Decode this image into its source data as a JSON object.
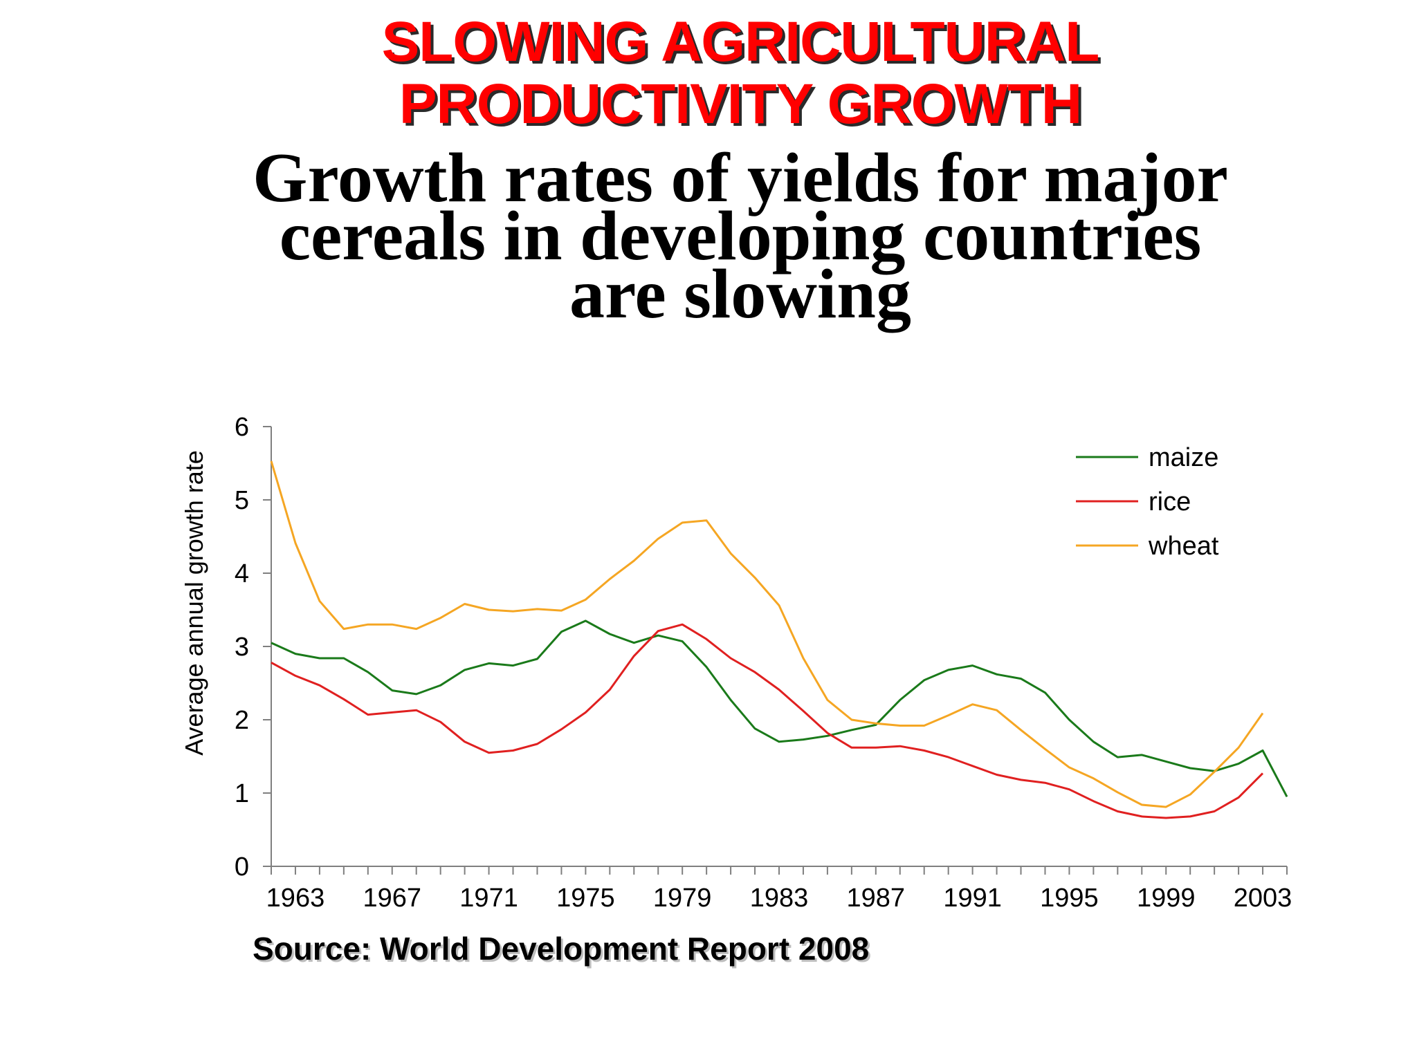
{
  "slide": {
    "title_lines": [
      "SLOWING AGRICULTURAL",
      "PRODUCTIVITY GROWTH"
    ],
    "headline_lines": [
      "Growth rates of yields for major",
      "cereals in developing countries",
      "are slowing"
    ],
    "source": "Source: World Development Report 2008"
  },
  "colors": {
    "title": "#ff0000",
    "maize": "#1a7a1a",
    "rice": "#e02020",
    "wheat": "#f5a623"
  },
  "chart_data": {
    "type": "line",
    "title": "",
    "xlabel": "",
    "ylabel": "Average annual growth rate",
    "ylim": [
      0,
      6
    ],
    "yticks": [
      "0",
      "1",
      "2",
      "3",
      "4",
      "5",
      "6"
    ],
    "xlim": [
      1962,
      2004
    ],
    "xtick_labels": [
      "1963",
      "1967",
      "1971",
      "1975",
      "1979",
      "1983",
      "1987",
      "1991",
      "1995",
      "1999",
      "2003"
    ],
    "legend_position": "top-right",
    "grid": false,
    "x": [
      1962,
      1963,
      1964,
      1965,
      1966,
      1967,
      1968,
      1969,
      1970,
      1971,
      1972,
      1973,
      1974,
      1975,
      1976,
      1977,
      1978,
      1979,
      1980,
      1981,
      1982,
      1983,
      1984,
      1985,
      1986,
      1987,
      1988,
      1989,
      1990,
      1991,
      1992,
      1993,
      1994,
      1995,
      1996,
      1997,
      1998,
      1999,
      2000,
      2001,
      2002,
      2003,
      2004
    ],
    "series": [
      {
        "name": "maize",
        "color": "#1a7a1a",
        "values": [
          3.05,
          2.9,
          2.84,
          2.84,
          2.65,
          2.4,
          2.35,
          2.47,
          2.68,
          2.77,
          2.74,
          2.83,
          3.2,
          3.35,
          3.17,
          3.05,
          3.15,
          3.07,
          2.72,
          2.27,
          1.88,
          1.7,
          1.73,
          1.78,
          1.86,
          1.93,
          2.27,
          2.54,
          2.68,
          2.74,
          2.62,
          2.56,
          2.37,
          2.0,
          1.7,
          1.49,
          1.52,
          1.43,
          1.34,
          1.3,
          1.4,
          1.58,
          0.95
        ]
      },
      {
        "name": "rice",
        "color": "#e02020",
        "values": [
          2.78,
          2.6,
          2.47,
          2.28,
          2.07,
          2.1,
          2.13,
          1.97,
          1.7,
          1.55,
          1.58,
          1.67,
          1.87,
          2.1,
          2.41,
          2.87,
          3.21,
          3.3,
          3.1,
          2.84,
          2.65,
          2.41,
          2.12,
          1.82,
          1.62,
          1.62,
          1.64,
          1.58,
          1.49,
          1.37,
          1.25,
          1.18,
          1.14,
          1.05,
          0.89,
          0.75,
          0.68,
          0.66,
          0.68,
          0.75,
          0.94,
          1.27,
          null
        ]
      },
      {
        "name": "wheat",
        "color": "#f5a623",
        "values": [
          5.53,
          4.41,
          3.62,
          3.24,
          3.3,
          3.3,
          3.24,
          3.39,
          3.58,
          3.5,
          3.48,
          3.51,
          3.49,
          3.64,
          3.92,
          4.17,
          4.47,
          4.69,
          4.72,
          4.27,
          3.94,
          3.56,
          2.84,
          2.27,
          2.0,
          1.95,
          1.92,
          1.92,
          2.06,
          2.21,
          2.13,
          1.86,
          1.6,
          1.35,
          1.2,
          1.01,
          0.84,
          0.81,
          0.98,
          1.29,
          1.62,
          2.09,
          null
        ]
      }
    ]
  }
}
